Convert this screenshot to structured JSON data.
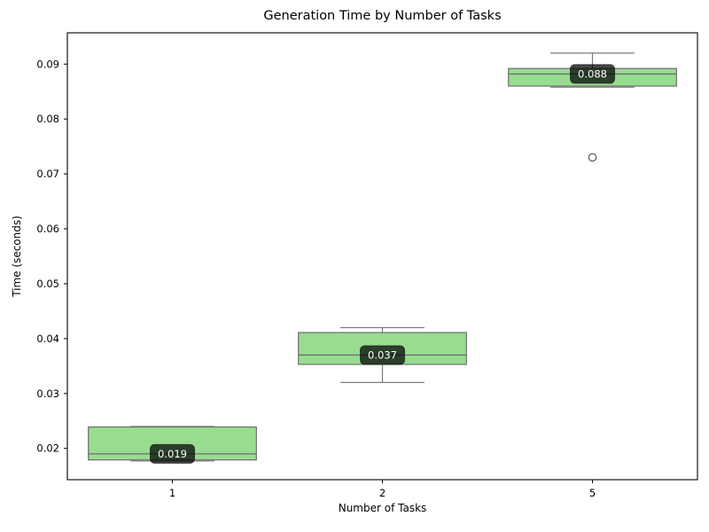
{
  "chart_data": {
    "type": "box",
    "title": "Generation Time by Number of Tasks",
    "xlabel": "Number of Tasks",
    "ylabel": "Time (seconds)",
    "categories": [
      "1",
      "2",
      "5"
    ],
    "ylim": [
      0.0143,
      0.0957
    ],
    "yticks": [
      0.02,
      0.03,
      0.04,
      0.05,
      0.06,
      0.07,
      0.08,
      0.09
    ],
    "grid": false,
    "legend": "none",
    "boxes": [
      {
        "category": "1",
        "whisker_low": 0.0177,
        "q1": 0.0179,
        "median": 0.019,
        "q3": 0.0239,
        "whisker_high": 0.024,
        "outliers": [],
        "median_label": "0.019"
      },
      {
        "category": "2",
        "whisker_low": 0.032,
        "q1": 0.0353,
        "median": 0.037,
        "q3": 0.0411,
        "whisker_high": 0.042,
        "outliers": [],
        "median_label": "0.037"
      },
      {
        "category": "5",
        "whisker_low": 0.0858,
        "q1": 0.086,
        "median": 0.0882,
        "q3": 0.0892,
        "whisker_high": 0.092,
        "outliers": [
          0.073
        ],
        "median_label": "0.088"
      }
    ],
    "colors": {
      "box_fill": "#98DC90",
      "box_edge": "#6e6e6e",
      "whisker": "#7a7a7a",
      "median_line": "#6e6e6e",
      "outlier_edge": "#5a5a5a",
      "annotation_bg": "#000000",
      "annotation_bg_opacity": 0.72,
      "annotation_text": "#ffffff",
      "axis_line": "#000000",
      "tick_text": "#000000"
    }
  }
}
